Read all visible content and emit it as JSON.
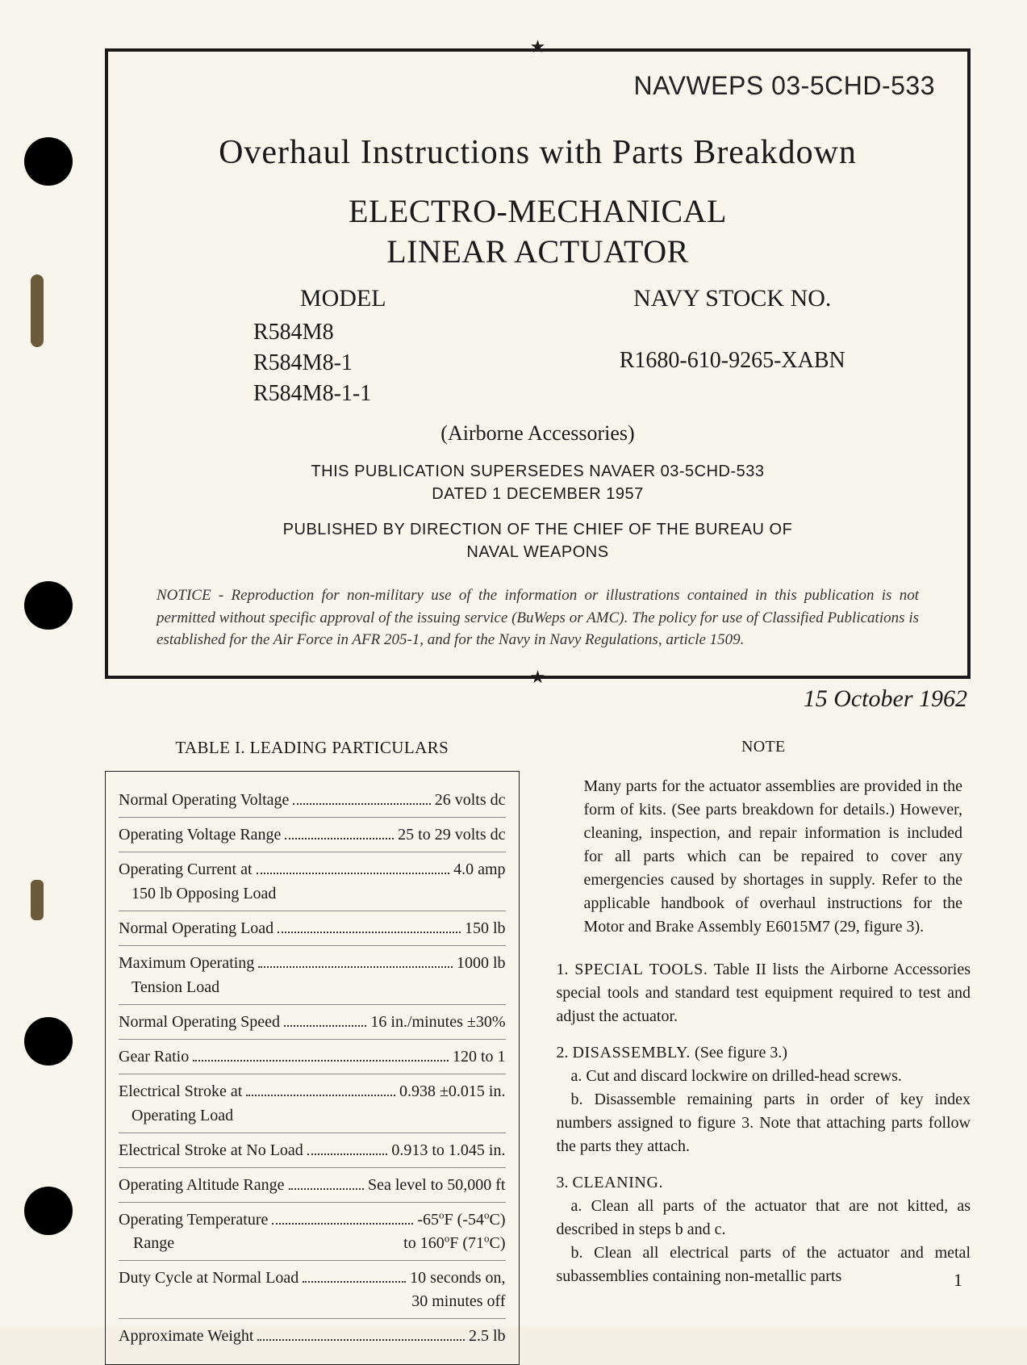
{
  "doc_code": "NAVWEPS 03-5CHD-533",
  "title_main": "Overhaul Instructions with Parts Breakdown",
  "title_sub_line1": "ELECTRO-MECHANICAL",
  "title_sub_line2": "LINEAR ACTUATOR",
  "model_header": "MODEL",
  "models": [
    "R584M8",
    "R584M8-1",
    "R584M8-1-1"
  ],
  "stock_header": "NAVY STOCK NO.",
  "stock_number": "R1680-610-9265-XABN",
  "parenthetical": "(Airborne Accessories)",
  "supersedes_line1": "THIS PUBLICATION SUPERSEDES NAVAER 03-5CHD-533",
  "supersedes_line2": "DATED 1 DECEMBER 1957",
  "published_line1": "PUBLISHED BY DIRECTION OF THE CHIEF OF THE BUREAU OF",
  "published_line2": "NAVAL WEAPONS",
  "notice_label": "NOTICE",
  "notice_text": " - Reproduction for non-military use of the information or illustrations contained in this publication is not permitted without specific approval of the issuing service (BuWeps or AMC). The policy for use of Classified Publications is established for the Air Force in AFR 205-1, and for the Navy in Navy Regulations, article 1509.",
  "date": "15 October 1962",
  "table_title": "TABLE I.  LEADING PARTICULARS",
  "table_rows": [
    {
      "label": "Normal Operating Voltage",
      "value": "26 volts dc"
    },
    {
      "label": "Operating Voltage Range",
      "value": "25 to 29 volts dc"
    },
    {
      "label": "Operating Current at",
      "sub": "150 lb Opposing Load",
      "value": "4.0 amp"
    },
    {
      "label": "Normal Operating Load",
      "value": "150 lb"
    },
    {
      "label": "Maximum Operating",
      "sub": "Tension Load",
      "value": "1000 lb"
    },
    {
      "label": "Normal Operating Speed",
      "value": "16 in./minutes ±30%"
    },
    {
      "label": "Gear Ratio",
      "value": "120 to 1"
    },
    {
      "label": "Electrical Stroke at",
      "sub": "Operating Load",
      "value": "0.938 ±0.015 in."
    },
    {
      "label": "Electrical Stroke at No Load",
      "value": "0.913 to 1.045 in."
    },
    {
      "label": "Operating Altitude Range",
      "value": "Sea level to 50,000 ft"
    },
    {
      "label": "Operating Temperature",
      "sub": "Range",
      "value": "-65°F (-54°C)",
      "value2": "to 160°F (71°C)"
    },
    {
      "label": "Duty Cycle at Normal Load",
      "value": "10 seconds on,",
      "value2": "30 minutes off"
    },
    {
      "label": "Approximate Weight",
      "value": "2.5 lb"
    }
  ],
  "note_heading": "NOTE",
  "note_body": "Many parts for the actuator assemblies are provided in the form of kits. (See parts breakdown for details.) However, cleaning, inspection, and repair information is included for all parts which can be repaired to cover any emergencies caused by shortages in supply. Refer to the applicable handbook of overhaul instructions for the Motor and Brake Assembly E6015M7 (29, figure 3).",
  "para1_num": "1.",
  "para1_head": "SPECIAL TOOLS.",
  "para1_text": "  Table II lists the Airborne Accessories special tools and standard test equipment required to test and adjust the actuator.",
  "para2_num": "2.",
  "para2_head": "DISASSEMBLY.",
  "para2_tail": " (See figure 3.)",
  "para2_a": "a.  Cut and discard lockwire on drilled-head screws.",
  "para2_b": "b.  Disassemble remaining parts in order of key index numbers assigned to figure 3.  Note that attaching parts follow the parts they attach.",
  "para3_num": "3.",
  "para3_head": "CLEANING.",
  "para3_a": "a.  Clean all parts of the actuator that are not kitted, as described in steps b and c.",
  "para3_b": "b.  Clean all electrical parts of the actuator and metal subassemblies containing non-metallic parts",
  "page_number": "1"
}
